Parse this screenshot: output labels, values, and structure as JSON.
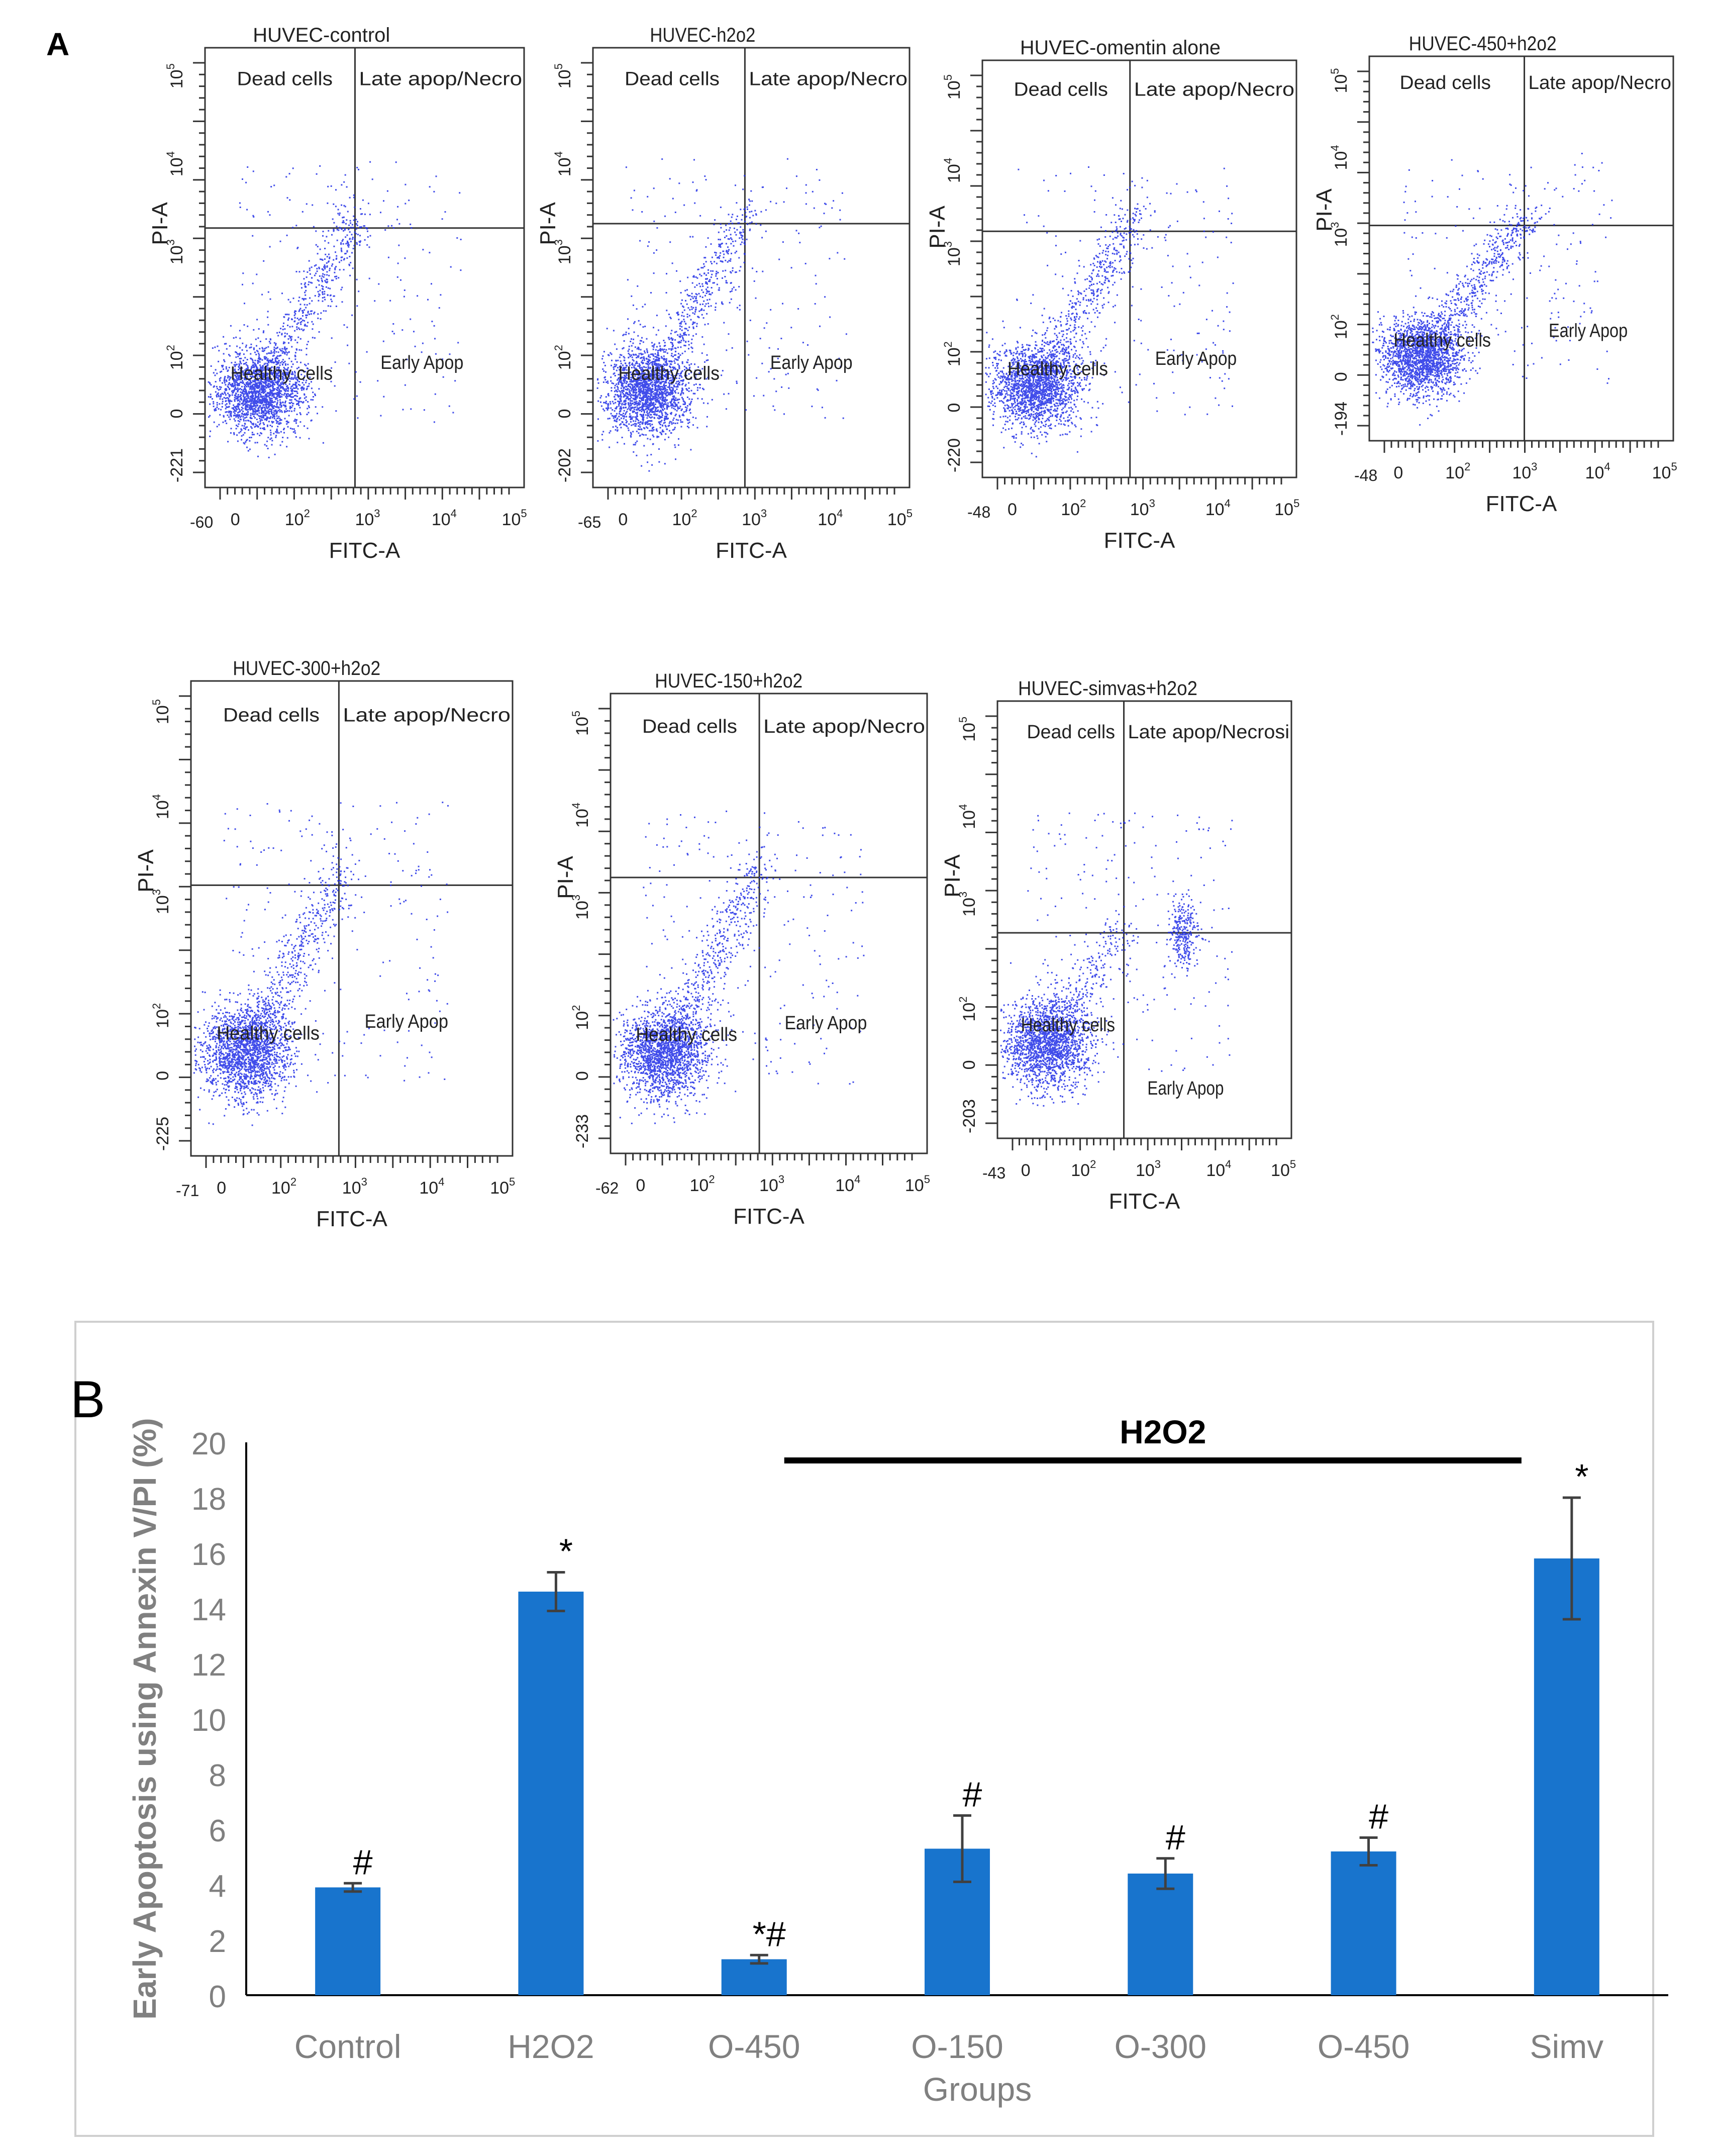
{
  "panel_a": {
    "label": "A",
    "plots": [
      {
        "title": "HUVEC-control",
        "x_label": "FITC-A",
        "y_label": "PI-A",
        "x_min_tick": "-60",
        "y_min_tick": "-221",
        "quadrants": {
          "upper_left": "Dead cells",
          "upper_right": "Late apop/Necro",
          "lower_left": "Healthy cells",
          "lower_right": "Early Apop"
        }
      },
      {
        "title": "HUVEC-h2o2",
        "x_label": "FITC-A",
        "y_label": "PI-A",
        "x_min_tick": "-65",
        "y_min_tick": "-202",
        "quadrants": {
          "upper_left": "Dead cells",
          "upper_right": "Late apop/Necro",
          "lower_left": "Healthy cells",
          "lower_right": "Early Apop"
        }
      },
      {
        "title": "HUVEC-omentin alone",
        "x_label": "FITC-A",
        "y_label": "PI-A",
        "x_min_tick": "-48",
        "y_min_tick": "-220",
        "quadrants": {
          "upper_left": "Dead cells",
          "upper_right": "Late apop/Necro",
          "lower_left": "Healthy cells",
          "lower_right": "Early Apop"
        }
      },
      {
        "title": "HUVEC-450+h2o2",
        "x_label": "FITC-A",
        "y_label": "PI-A",
        "x_min_tick": "-48",
        "y_min_tick": "-194",
        "quadrants": {
          "upper_left": "Dead cells",
          "upper_right": "Late apop/Necro",
          "lower_left": "Healthy cells",
          "lower_right": "Early Apop"
        }
      },
      {
        "title": "HUVEC-300+h2o2",
        "x_label": "FITC-A",
        "y_label": "PI-A",
        "x_min_tick": "-71",
        "y_min_tick": "-225",
        "quadrants": {
          "upper_left": "Dead cells",
          "upper_right": "Late apop/Necro",
          "lower_left": "Healthy cells",
          "lower_right": "Early Apop"
        }
      },
      {
        "title": "HUVEC-150+h2o2",
        "x_label": "FITC-A",
        "y_label": "PI-A",
        "x_min_tick": "-62",
        "y_min_tick": "-233",
        "quadrants": {
          "upper_left": "Dead cells",
          "upper_right": "Late apop/Necro",
          "lower_left": "Healthy cells",
          "lower_right": "Early Apop"
        }
      },
      {
        "title": "HUVEC-simvas+h2o2",
        "x_label": "FITC-A",
        "y_label": "PI-A",
        "x_min_tick": "-43",
        "y_min_tick": "-203",
        "quadrants": {
          "upper_left": "Dead cells",
          "upper_right": "Late apop/Necrosi",
          "lower_left": "Healthy cells",
          "lower_right": "Early Apop"
        }
      }
    ],
    "decade_ticks": [
      "0",
      "10",
      "10",
      "10",
      "10"
    ],
    "decade_exponents": [
      "",
      "2",
      "3",
      "4",
      "5"
    ]
  },
  "panel_b": {
    "label": "B"
  },
  "chart_data": {
    "type": "bar",
    "title": "",
    "xlabel": "Groups",
    "ylabel": "Early Apoptosis using Annexin V/PI (%)",
    "ylim": [
      0,
      20
    ],
    "yticks": [
      "0",
      "2",
      "4",
      "6",
      "8",
      "10",
      "12",
      "14",
      "16",
      "18",
      "20"
    ],
    "categories": [
      "Control",
      "H2O2",
      "O-450",
      "O-150",
      "O-300",
      "O-450",
      "Simv"
    ],
    "values": [
      3.9,
      14.6,
      1.3,
      5.3,
      4.4,
      5.2,
      15.8
    ],
    "errors": [
      0.15,
      0.7,
      0.15,
      1.2,
      0.55,
      0.5,
      2.2
    ],
    "annotations": [
      "#",
      "*",
      "*#",
      "#",
      "#",
      "#",
      "*"
    ],
    "group_bracket": {
      "label": "H2O2",
      "from_category": 3,
      "to_category": 6
    },
    "colors": {
      "bar": "#1874CD",
      "error": "#404040",
      "axis": "#000000",
      "tick_label": "#808080"
    },
    "grid": false
  }
}
